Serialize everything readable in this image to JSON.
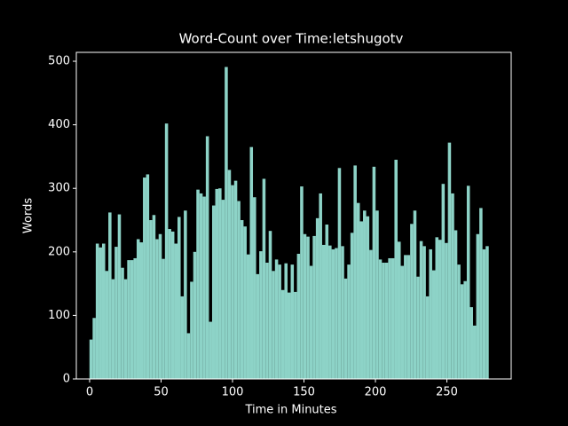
{
  "chart_data": {
    "type": "bar",
    "title": "Word-Count over Time:letshugotv",
    "xlabel": "Time in Minutes",
    "ylabel": "Words",
    "color": "#8dd3c7",
    "x": [
      1,
      3.2,
      5.4,
      7.6,
      9.8,
      12,
      14.2,
      16.4,
      18.6,
      20.8,
      23,
      25.2,
      27.4,
      29.6,
      31.8,
      34,
      36.2,
      38.4,
      40.6,
      42.8,
      45,
      47.2,
      49.4,
      51.6,
      53.8,
      56,
      58.2,
      60.4,
      62.6,
      64.8,
      67,
      69.2,
      71.4,
      73.6,
      75.8,
      78,
      80.2,
      82.4,
      84.6,
      86.8,
      89,
      91.2,
      93.4,
      95.6,
      97.8,
      100,
      102.2,
      104.4,
      106.6,
      108.8,
      111,
      113.2,
      115.4,
      117.6,
      119.8,
      122,
      124.2,
      126.4,
      128.6,
      130.8,
      133,
      135.2,
      137.4,
      139.6,
      141.8,
      144,
      146.2,
      148.4,
      150.6,
      152.8,
      155,
      157.2,
      159.4,
      161.6,
      163.8,
      166,
      168.2,
      170.4,
      172.6,
      174.8,
      177,
      179.2,
      181.4,
      183.6,
      185.8,
      188,
      190.2,
      192.4,
      194.6,
      196.8,
      199,
      201.2,
      203.4,
      205.6,
      207.8,
      210,
      212.2,
      214.4,
      216.6,
      218.8,
      221,
      223.2,
      225.4,
      227.6,
      229.8,
      232,
      234.2,
      236.4,
      238.6,
      240.8,
      243,
      245.2,
      247.4,
      249.6,
      251.8,
      254,
      256.2,
      258.4,
      260.6,
      262.8,
      265,
      267.2,
      269.4,
      271.6,
      273.8,
      276,
      278.2
    ],
    "values": [
      62,
      96,
      213,
      207,
      213,
      170,
      262,
      157,
      208,
      259,
      175,
      157,
      187,
      187,
      190,
      220,
      215,
      317,
      322,
      250,
      258,
      220,
      228,
      189,
      402,
      236,
      232,
      213,
      255,
      130,
      265,
      72,
      153,
      200,
      298,
      292,
      287,
      382,
      90,
      273,
      299,
      300,
      282,
      491,
      329,
      305,
      312,
      280,
      250,
      240,
      196,
      365,
      286,
      165,
      201,
      315,
      183,
      233,
      170,
      188,
      180,
      140,
      182,
      136,
      180,
      137,
      197,
      303,
      228,
      224,
      178,
      225,
      253,
      292,
      211,
      243,
      210,
      204,
      206,
      332,
      209,
      158,
      180,
      230,
      336,
      277,
      248,
      265,
      256,
      203,
      334,
      265,
      188,
      183,
      183,
      190,
      190,
      345,
      216,
      178,
      195,
      195,
      244,
      265,
      161,
      217,
      209,
      130,
      204,
      171,
      223,
      219,
      307,
      214,
      372,
      292,
      234,
      180,
      149,
      154,
      304,
      113,
      84,
      228,
      269,
      204,
      209
    ],
    "xlim": [
      -9.3,
      295
    ],
    "xticks": [
      0,
      50,
      100,
      150,
      200,
      250
    ],
    "ylim": [
      0,
      514
    ],
    "yticks": [
      0,
      100,
      200,
      300,
      400,
      500
    ]
  }
}
